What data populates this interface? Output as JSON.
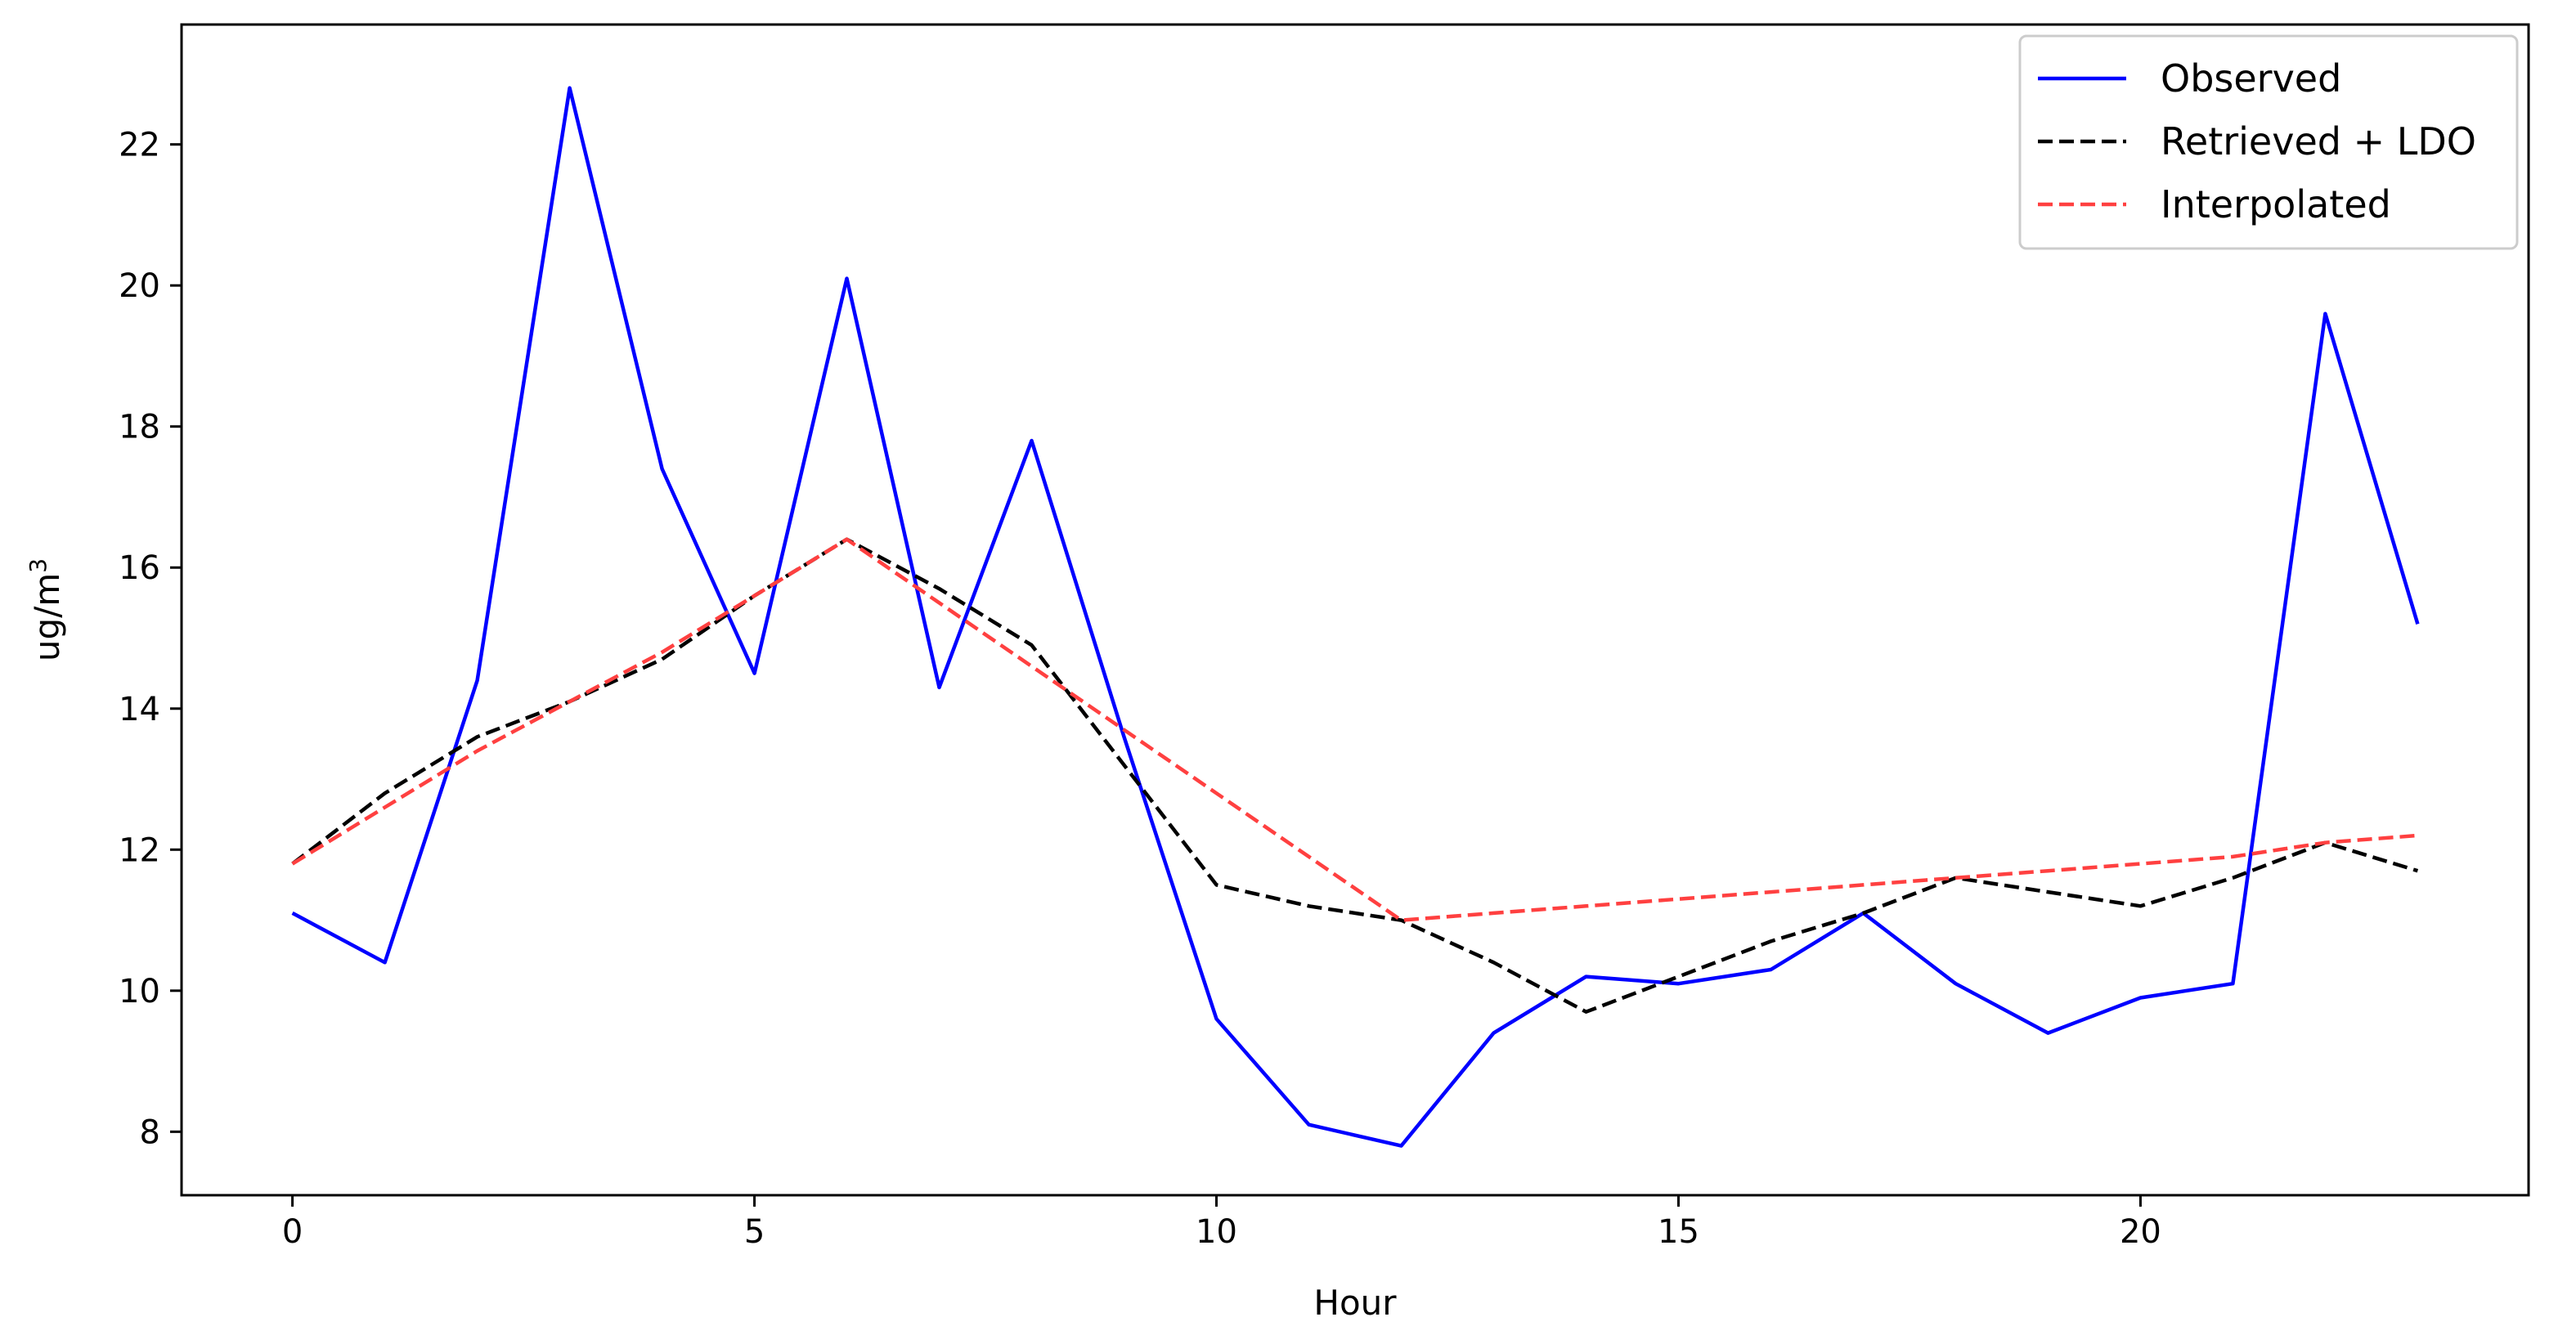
{
  "chart_data": {
    "type": "line",
    "xlabel": "Hour",
    "ylabel_base": "ug/m",
    "ylabel_sup": "3",
    "xlim": [
      -1.2,
      24.2
    ],
    "ylim": [
      7.1,
      23.7
    ],
    "xticks": [
      0,
      5,
      10,
      15,
      20
    ],
    "yticks": [
      8,
      10,
      12,
      14,
      16,
      18,
      20,
      22
    ],
    "grid": false,
    "legend_position": "top-right",
    "x": [
      0,
      1,
      2,
      3,
      4,
      5,
      6,
      7,
      8,
      9,
      10,
      11,
      12,
      13,
      14,
      15,
      16,
      17,
      18,
      19,
      20,
      21,
      22,
      23
    ],
    "series": [
      {
        "name": "Observed",
        "color": "#0000ff",
        "style": "solid",
        "values": [
          11.1,
          10.4,
          14.4,
          22.8,
          17.4,
          14.5,
          20.1,
          14.3,
          17.8,
          13.6,
          9.6,
          8.1,
          7.8,
          9.4,
          10.2,
          10.1,
          10.3,
          11.1,
          10.1,
          9.4,
          9.9,
          10.1,
          19.6,
          15.2
        ]
      },
      {
        "name": "Retrieved + LDO",
        "color": "#000000",
        "style": "dashed",
        "values": [
          11.8,
          12.8,
          13.6,
          14.1,
          14.7,
          15.6,
          16.4,
          15.7,
          14.9,
          13.2,
          11.5,
          11.2,
          11.0,
          10.4,
          9.7,
          10.2,
          10.7,
          11.1,
          11.6,
          11.4,
          11.2,
          11.6,
          12.1,
          11.7
        ]
      },
      {
        "name": "Interpolated",
        "color": "#ff4040",
        "style": "dashed",
        "values": [
          11.8,
          12.6,
          13.4,
          14.1,
          14.8,
          15.6,
          16.4,
          15.5,
          14.6,
          13.7,
          12.8,
          11.9,
          11.0,
          11.1,
          11.2,
          11.3,
          11.4,
          11.5,
          11.6,
          11.7,
          11.8,
          11.9,
          12.1,
          12.2
        ]
      }
    ]
  }
}
